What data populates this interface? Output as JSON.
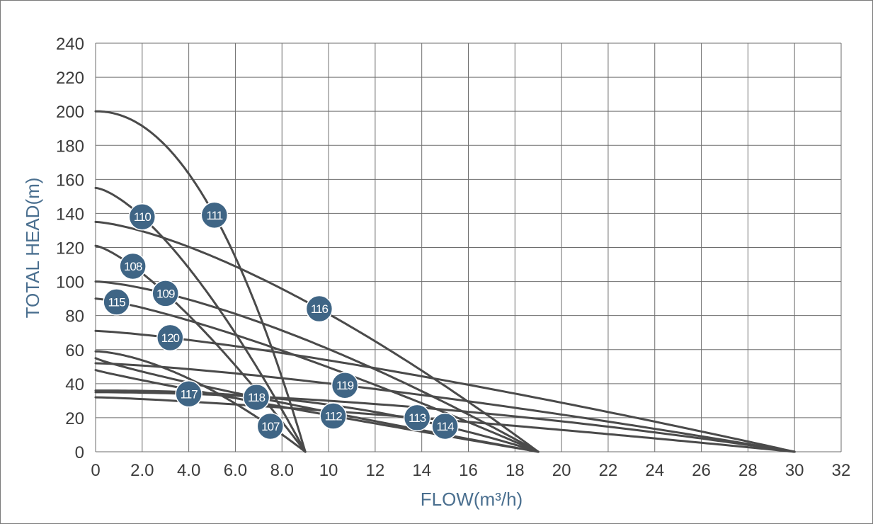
{
  "chart_data": {
    "type": "line",
    "title": "",
    "xlabel": "FLOW(m³/h)",
    "ylabel": "TOTAL HEAD(m)",
    "xlim": [
      0,
      32
    ],
    "ylim": [
      0,
      240
    ],
    "x_ticks": [
      "0",
      "2.0",
      "4.0",
      "6.0",
      "8.0",
      "10",
      "12",
      "14",
      "16",
      "18",
      "20",
      "22",
      "24",
      "26",
      "28",
      "30",
      "32"
    ],
    "y_ticks": [
      "0",
      "20",
      "40",
      "60",
      "80",
      "100",
      "120",
      "140",
      "160",
      "180",
      "200",
      "220",
      "240"
    ],
    "grid": true,
    "accent_color": "#3f6585",
    "curve_color": "#4a4a4a",
    "series": [
      {
        "name": "111",
        "shutoff_head": 200,
        "max_flow": 9.0,
        "label_at": [
          5.1,
          139
        ]
      },
      {
        "name": "110",
        "shutoff_head": 155,
        "max_flow": 9.0,
        "label_at": [
          2.0,
          138
        ]
      },
      {
        "name": "108",
        "shutoff_head": 121,
        "max_flow": 9.0,
        "label_at": [
          1.6,
          109
        ]
      },
      {
        "name": "107",
        "shutoff_head": 59,
        "max_flow": 9.0,
        "label_at": [
          7.5,
          15
        ]
      },
      {
        "name": "116",
        "shutoff_head": 135,
        "max_flow": 19.0,
        "label_at": [
          9.6,
          84
        ]
      },
      {
        "name": "109",
        "shutoff_head": 100,
        "max_flow": 19.0,
        "label_at": [
          3.0,
          93
        ]
      },
      {
        "name": "115",
        "shutoff_head": 90,
        "max_flow": 19.0,
        "label_at": [
          0.9,
          88
        ]
      },
      {
        "name": "118",
        "shutoff_head": 55,
        "max_flow": 19.0,
        "label_at": [
          6.9,
          32
        ]
      },
      {
        "name": "112",
        "shutoff_head": 48,
        "max_flow": 19.0,
        "label_at": [
          10.2,
          21
        ]
      },
      {
        "name": "114",
        "shutoff_head": 36,
        "max_flow": 19.0,
        "label_at": [
          15.0,
          15
        ]
      },
      {
        "name": "120",
        "shutoff_head": 71,
        "max_flow": 30.0,
        "label_at": [
          3.2,
          67
        ]
      },
      {
        "name": "119",
        "shutoff_head": 52,
        "max_flow": 30.0,
        "label_at": [
          10.7,
          39
        ]
      },
      {
        "name": "117",
        "shutoff_head": 35,
        "max_flow": 30.0,
        "label_at": [
          4.0,
          34
        ]
      },
      {
        "name": "113",
        "shutoff_head": 32,
        "max_flow": 30.0,
        "label_at": [
          13.8,
          20
        ]
      }
    ]
  }
}
